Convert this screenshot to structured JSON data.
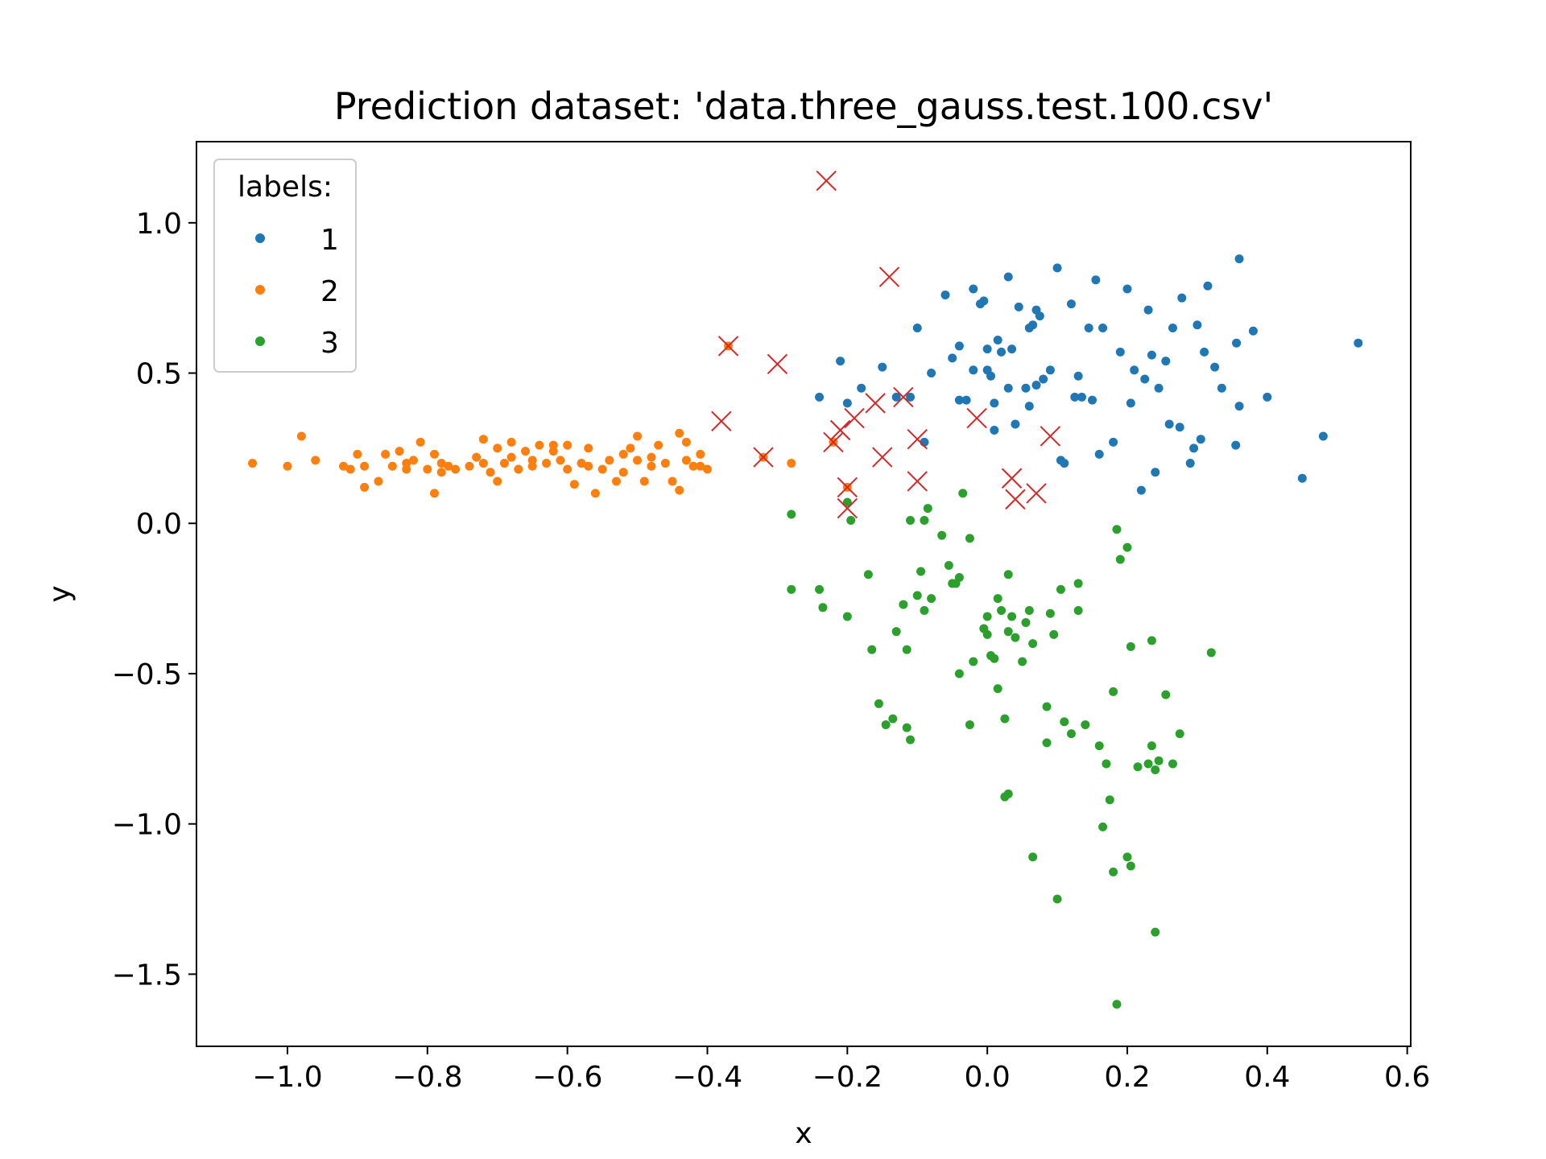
{
  "chart_data": {
    "type": "scatter",
    "title": "Prediction dataset: 'data.three_gauss.test.100.csv'",
    "xlabel": "x",
    "ylabel": "y",
    "xlim": [
      -1.13,
      0.605
    ],
    "ylim": [
      -1.74,
      1.27
    ],
    "x_ticks": [
      -1.0,
      -0.8,
      -0.6,
      -0.4,
      -0.2,
      0.0,
      0.2,
      0.4,
      0.6
    ],
    "x_tick_labels": [
      "−1.0",
      "−0.8",
      "−0.6",
      "−0.4",
      "−0.2",
      "0.0",
      "0.2",
      "0.4",
      "0.6"
    ],
    "y_ticks": [
      1.0,
      0.5,
      0.0,
      -0.5,
      -1.0,
      -1.5
    ],
    "y_tick_labels": [
      "1.0",
      "0.5",
      "0.0",
      "−0.5",
      "−1.0",
      "−1.5"
    ],
    "grid": false,
    "legend": {
      "title": "labels:",
      "placement": "top-left"
    },
    "series": [
      {
        "name": "1",
        "color": "#1f77b4",
        "points": [
          [
            -0.24,
            0.42
          ],
          [
            -0.21,
            0.54
          ],
          [
            -0.2,
            0.4
          ],
          [
            -0.18,
            0.45
          ],
          [
            -0.15,
            0.52
          ],
          [
            -0.13,
            0.42
          ],
          [
            -0.11,
            0.42
          ],
          [
            -0.1,
            0.65
          ],
          [
            -0.09,
            0.27
          ],
          [
            -0.08,
            0.5
          ],
          [
            -0.06,
            0.76
          ],
          [
            -0.05,
            0.55
          ],
          [
            -0.04,
            0.59
          ],
          [
            -0.04,
            0.41
          ],
          [
            -0.03,
            0.41
          ],
          [
            -0.02,
            0.78
          ],
          [
            -0.02,
            0.51
          ],
          [
            -0.01,
            0.73
          ],
          [
            -0.005,
            0.74
          ],
          [
            0.0,
            0.58
          ],
          [
            0.0,
            0.51
          ],
          [
            0.005,
            0.49
          ],
          [
            0.01,
            0.31
          ],
          [
            0.01,
            0.4
          ],
          [
            0.015,
            0.61
          ],
          [
            0.02,
            0.57
          ],
          [
            0.03,
            0.82
          ],
          [
            0.03,
            0.45
          ],
          [
            0.035,
            0.58
          ],
          [
            0.04,
            0.33
          ],
          [
            0.045,
            0.72
          ],
          [
            0.055,
            0.45
          ],
          [
            0.06,
            0.39
          ],
          [
            0.06,
            0.65
          ],
          [
            0.065,
            0.66
          ],
          [
            0.07,
            0.71
          ],
          [
            0.07,
            0.46
          ],
          [
            0.075,
            0.69
          ],
          [
            0.08,
            0.48
          ],
          [
            0.09,
            0.51
          ],
          [
            0.1,
            0.85
          ],
          [
            0.105,
            0.21
          ],
          [
            0.11,
            0.2
          ],
          [
            0.12,
            0.73
          ],
          [
            0.125,
            0.42
          ],
          [
            0.13,
            0.49
          ],
          [
            0.135,
            0.42
          ],
          [
            0.145,
            0.65
          ],
          [
            0.15,
            0.41
          ],
          [
            0.155,
            0.81
          ],
          [
            0.16,
            0.23
          ],
          [
            0.165,
            0.65
          ],
          [
            0.18,
            0.27
          ],
          [
            0.19,
            0.57
          ],
          [
            0.2,
            0.78
          ],
          [
            0.205,
            0.4
          ],
          [
            0.21,
            0.51
          ],
          [
            0.22,
            0.11
          ],
          [
            0.225,
            0.48
          ],
          [
            0.23,
            0.71
          ],
          [
            0.235,
            0.56
          ],
          [
            0.24,
            0.17
          ],
          [
            0.245,
            0.45
          ],
          [
            0.255,
            0.54
          ],
          [
            0.26,
            0.33
          ],
          [
            0.265,
            0.65
          ],
          [
            0.275,
            0.32
          ],
          [
            0.278,
            0.75
          ],
          [
            0.29,
            0.2
          ],
          [
            0.295,
            0.25
          ],
          [
            0.3,
            0.66
          ],
          [
            0.305,
            0.28
          ],
          [
            0.31,
            0.57
          ],
          [
            0.315,
            0.79
          ],
          [
            0.325,
            0.52
          ],
          [
            0.335,
            0.45
          ],
          [
            0.355,
            0.26
          ],
          [
            0.356,
            0.6
          ],
          [
            0.36,
            0.88
          ],
          [
            0.36,
            0.39
          ],
          [
            0.38,
            0.64
          ],
          [
            0.4,
            0.42
          ],
          [
            0.45,
            0.15
          ],
          [
            0.48,
            0.29
          ],
          [
            0.53,
            0.6
          ]
        ]
      },
      {
        "name": "2",
        "color": "#ff7f0e",
        "points": [
          [
            -1.05,
            0.2
          ],
          [
            -1.0,
            0.19
          ],
          [
            -0.98,
            0.29
          ],
          [
            -0.96,
            0.21
          ],
          [
            -0.92,
            0.19
          ],
          [
            -0.91,
            0.18
          ],
          [
            -0.9,
            0.23
          ],
          [
            -0.89,
            0.12
          ],
          [
            -0.89,
            0.19
          ],
          [
            -0.87,
            0.14
          ],
          [
            -0.86,
            0.23
          ],
          [
            -0.85,
            0.19
          ],
          [
            -0.84,
            0.24
          ],
          [
            -0.83,
            0.2
          ],
          [
            -0.83,
            0.18
          ],
          [
            -0.82,
            0.21
          ],
          [
            -0.81,
            0.27
          ],
          [
            -0.8,
            0.18
          ],
          [
            -0.79,
            0.23
          ],
          [
            -0.79,
            0.1
          ],
          [
            -0.78,
            0.2
          ],
          [
            -0.78,
            0.17
          ],
          [
            -0.77,
            0.19
          ],
          [
            -0.76,
            0.18
          ],
          [
            -0.74,
            0.19
          ],
          [
            -0.73,
            0.22
          ],
          [
            -0.72,
            0.28
          ],
          [
            -0.72,
            0.2
          ],
          [
            -0.71,
            0.17
          ],
          [
            -0.7,
            0.25
          ],
          [
            -0.7,
            0.14
          ],
          [
            -0.69,
            0.2
          ],
          [
            -0.68,
            0.27
          ],
          [
            -0.68,
            0.22
          ],
          [
            -0.67,
            0.18
          ],
          [
            -0.66,
            0.24
          ],
          [
            -0.65,
            0.21
          ],
          [
            -0.64,
            0.26
          ],
          [
            -0.63,
            0.2
          ],
          [
            -0.62,
            0.26
          ],
          [
            -0.61,
            0.21
          ],
          [
            -0.6,
            0.18
          ],
          [
            -0.6,
            0.26
          ],
          [
            -0.59,
            0.13
          ],
          [
            -0.58,
            0.2
          ],
          [
            -0.57,
            0.25
          ],
          [
            -0.56,
            0.1
          ],
          [
            -0.55,
            0.18
          ],
          [
            -0.54,
            0.21
          ],
          [
            -0.53,
            0.14
          ],
          [
            -0.52,
            0.17
          ],
          [
            -0.51,
            0.25
          ],
          [
            -0.5,
            0.21
          ],
          [
            -0.5,
            0.29
          ],
          [
            -0.49,
            0.14
          ],
          [
            -0.48,
            0.19
          ],
          [
            -0.47,
            0.26
          ],
          [
            -0.46,
            0.2
          ],
          [
            -0.45,
            0.14
          ],
          [
            -0.44,
            0.3
          ],
          [
            -0.43,
            0.21
          ],
          [
            -0.42,
            0.19
          ],
          [
            -0.41,
            0.23
          ],
          [
            -0.4,
            0.18
          ],
          [
            -0.37,
            0.59
          ],
          [
            -0.32,
            0.22
          ],
          [
            -0.28,
            0.2
          ],
          [
            -0.22,
            0.27
          ],
          [
            -0.2,
            0.12
          ],
          [
            -0.65,
            0.19
          ],
          [
            -0.62,
            0.24
          ],
          [
            -0.57,
            0.19
          ],
          [
            -0.52,
            0.23
          ],
          [
            -0.48,
            0.22
          ],
          [
            -0.44,
            0.11
          ],
          [
            -0.43,
            0.27
          ],
          [
            -0.41,
            0.19
          ]
        ]
      },
      {
        "name": "3",
        "color": "#2ca02c",
        "points": [
          [
            -0.28,
            0.03
          ],
          [
            -0.28,
            -0.22
          ],
          [
            -0.24,
            -0.22
          ],
          [
            -0.235,
            -0.28
          ],
          [
            -0.2,
            -0.31
          ],
          [
            -0.2,
            0.07
          ],
          [
            -0.195,
            0.01
          ],
          [
            -0.17,
            -0.17
          ],
          [
            -0.165,
            -0.42
          ],
          [
            -0.155,
            -0.6
          ],
          [
            -0.145,
            -0.67
          ],
          [
            -0.135,
            -0.65
          ],
          [
            -0.13,
            -0.36
          ],
          [
            -0.12,
            -0.27
          ],
          [
            -0.115,
            -0.68
          ],
          [
            -0.115,
            -0.42
          ],
          [
            -0.11,
            -0.72
          ],
          [
            -0.11,
            0.01
          ],
          [
            -0.1,
            -0.24
          ],
          [
            -0.095,
            -0.16
          ],
          [
            -0.09,
            -0.29
          ],
          [
            -0.09,
            0.01
          ],
          [
            -0.085,
            0.05
          ],
          [
            -0.08,
            -0.25
          ],
          [
            -0.065,
            -0.04
          ],
          [
            -0.055,
            -0.14
          ],
          [
            -0.05,
            -0.2
          ],
          [
            -0.045,
            -0.2
          ],
          [
            -0.04,
            -0.5
          ],
          [
            -0.04,
            -0.18
          ],
          [
            -0.035,
            0.1
          ],
          [
            -0.025,
            -0.05
          ],
          [
            -0.025,
            -0.67
          ],
          [
            -0.02,
            -0.46
          ],
          [
            -0.005,
            -0.35
          ],
          [
            0.0,
            -0.37
          ],
          [
            0.0,
            -0.31
          ],
          [
            0.005,
            -0.44
          ],
          [
            0.01,
            -0.45
          ],
          [
            0.015,
            -0.25
          ],
          [
            0.015,
            -0.55
          ],
          [
            0.02,
            -0.29
          ],
          [
            0.025,
            -0.65
          ],
          [
            0.025,
            -0.91
          ],
          [
            0.03,
            -0.9
          ],
          [
            0.03,
            -0.17
          ],
          [
            0.03,
            -0.36
          ],
          [
            0.035,
            -0.31
          ],
          [
            0.04,
            -0.38
          ],
          [
            0.05,
            -0.46
          ],
          [
            0.055,
            -0.33
          ],
          [
            0.06,
            -0.29
          ],
          [
            0.065,
            -0.4
          ],
          [
            0.065,
            -1.11
          ],
          [
            0.085,
            -0.61
          ],
          [
            0.085,
            -0.73
          ],
          [
            0.09,
            -0.3
          ],
          [
            0.095,
            -0.37
          ],
          [
            0.1,
            -1.25
          ],
          [
            0.105,
            -0.22
          ],
          [
            0.11,
            -0.66
          ],
          [
            0.12,
            -0.7
          ],
          [
            0.13,
            -0.29
          ],
          [
            0.13,
            -0.2
          ],
          [
            0.14,
            -0.67
          ],
          [
            0.16,
            -0.74
          ],
          [
            0.165,
            -1.01
          ],
          [
            0.17,
            -0.8
          ],
          [
            0.175,
            -0.92
          ],
          [
            0.18,
            -0.56
          ],
          [
            0.18,
            -1.16
          ],
          [
            0.185,
            -0.02
          ],
          [
            0.19,
            -0.12
          ],
          [
            0.2,
            -1.11
          ],
          [
            0.2,
            -0.08
          ],
          [
            0.205,
            -1.14
          ],
          [
            0.205,
            -0.41
          ],
          [
            0.215,
            -0.81
          ],
          [
            0.23,
            -0.8
          ],
          [
            0.235,
            -0.74
          ],
          [
            0.235,
            -0.39
          ],
          [
            0.24,
            -0.82
          ],
          [
            0.24,
            -1.36
          ],
          [
            0.245,
            -0.79
          ],
          [
            0.255,
            -0.57
          ],
          [
            0.265,
            -0.8
          ],
          [
            0.275,
            -0.7
          ],
          [
            0.32,
            -0.43
          ],
          [
            0.185,
            -1.6
          ]
        ]
      }
    ],
    "misclassified": {
      "marker": "x",
      "color": "#d62728",
      "points": [
        [
          -0.23,
          1.14
        ],
        [
          -0.14,
          0.82
        ],
        [
          -0.37,
          0.59
        ],
        [
          -0.3,
          0.53
        ],
        [
          -0.38,
          0.34
        ],
        [
          -0.32,
          0.22
        ],
        [
          -0.22,
          0.27
        ],
        [
          -0.21,
          0.31
        ],
        [
          -0.19,
          0.35
        ],
        [
          -0.16,
          0.4
        ],
        [
          -0.12,
          0.42
        ],
        [
          -0.15,
          0.22
        ],
        [
          -0.1,
          0.28
        ],
        [
          -0.1,
          0.14
        ],
        [
          -0.2,
          0.12
        ],
        [
          -0.2,
          0.05
        ],
        [
          -0.015,
          0.35
        ],
        [
          0.035,
          0.15
        ],
        [
          0.04,
          0.08
        ],
        [
          0.07,
          0.1
        ],
        [
          0.09,
          0.29
        ]
      ]
    }
  }
}
